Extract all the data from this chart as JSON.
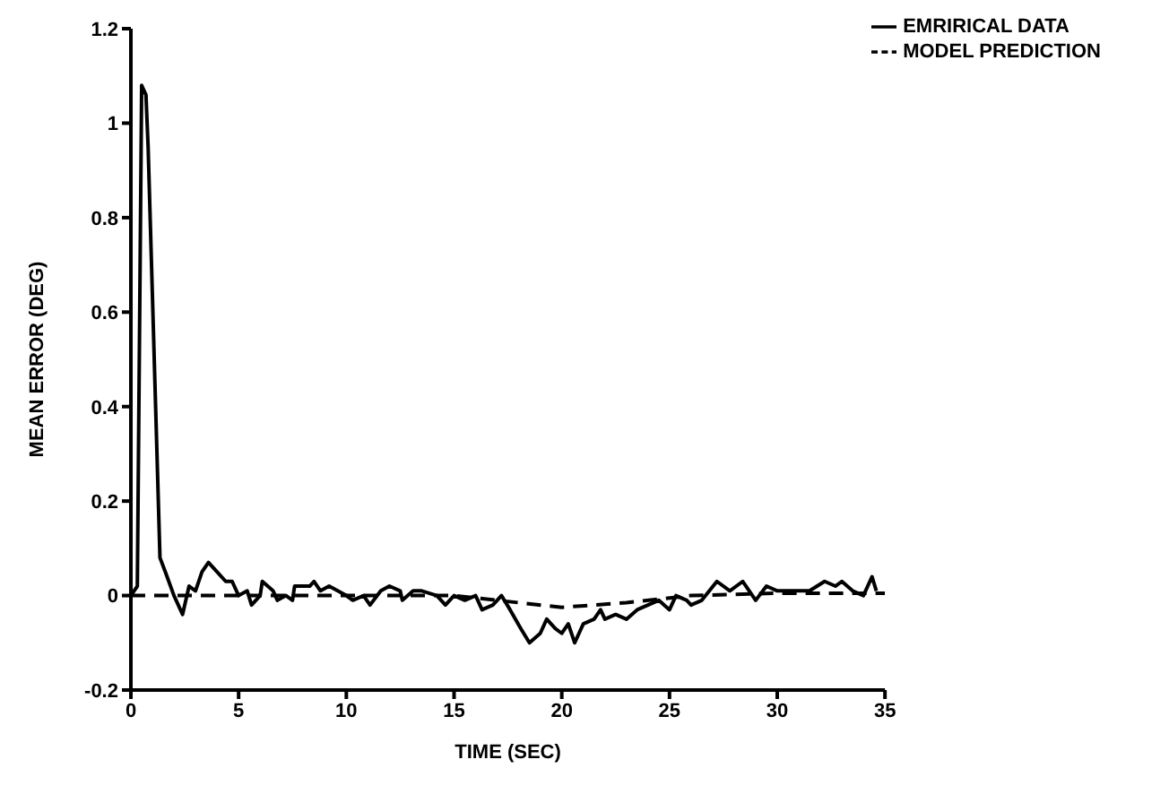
{
  "chart_data": {
    "type": "line",
    "xlabel": "TIME (SEC)",
    "ylabel": "MEAN ERROR (DEG)",
    "xlim": [
      0,
      35
    ],
    "xticks": [
      0,
      5,
      10,
      15,
      20,
      25,
      30,
      35
    ],
    "ylim": [
      -0.2,
      1.2
    ],
    "yticks": [
      -0.2,
      0,
      0.2,
      0.4,
      0.6,
      0.8,
      1,
      1.2
    ],
    "grid": false,
    "legend": "top right",
    "marker": "none",
    "series": [
      {
        "name": "EMRIRICAL DATA",
        "color": "#000000",
        "line_style": "solid",
        "x": [
          0,
          0.3,
          0.5,
          0.7,
          0.8,
          1.35,
          1.6,
          2,
          2.4,
          2.7,
          3,
          3.3,
          3.6,
          4,
          4.4,
          4.7,
          5,
          5.4,
          5.6,
          6,
          6.1,
          6.6,
          6.8,
          7.2,
          7.5,
          7.6,
          8.3,
          8.5,
          8.8,
          9.2,
          9.6,
          10,
          10.3,
          10.8,
          11.1,
          11.6,
          12,
          12.5,
          12.6,
          13.1,
          13.5,
          14.2,
          14.6,
          15,
          15.5,
          16,
          16.3,
          16.8,
          17.2,
          17.6,
          18.1,
          18.5,
          19,
          19.3,
          19.7,
          20,
          20.3,
          20.6,
          21,
          21.5,
          21.8,
          22,
          22.5,
          23,
          23.5,
          24,
          24.5,
          25,
          25.3,
          25.8,
          26,
          26.5,
          27.2,
          27.8,
          28.4,
          29,
          29.5,
          30,
          30.6,
          31.5,
          32.2,
          32.7,
          33,
          33.5,
          34,
          34.4,
          34.6
        ],
        "values": [
          0,
          0.02,
          1.08,
          1.06,
          0.95,
          0.08,
          0.05,
          0,
          -0.04,
          0.02,
          0.01,
          0.05,
          0.07,
          0.05,
          0.03,
          0.03,
          0,
          0.01,
          -0.02,
          0,
          0.03,
          0.01,
          -0.01,
          0,
          -0.01,
          0.02,
          0.02,
          0.03,
          0.01,
          0.02,
          0.01,
          0,
          -0.01,
          0,
          -0.02,
          0.01,
          0.02,
          0.01,
          -0.01,
          0.01,
          0.01,
          0,
          -0.02,
          0,
          -0.01,
          0,
          -0.03,
          -0.02,
          0,
          -0.03,
          -0.07,
          -0.1,
          -0.08,
          -0.05,
          -0.07,
          -0.08,
          -0.06,
          -0.1,
          -0.06,
          -0.05,
          -0.03,
          -0.05,
          -0.04,
          -0.05,
          -0.03,
          -0.02,
          -0.01,
          -0.03,
          0,
          -0.01,
          -0.02,
          -0.01,
          0.03,
          0.01,
          0.03,
          -0.01,
          0.02,
          0.01,
          0.01,
          0.01,
          0.03,
          0.02,
          0.03,
          0.01,
          0,
          0.04,
          0.01
        ]
      },
      {
        "name": "MODEL PREDICTION",
        "color": "#000000",
        "line_style": "dashed",
        "x": [
          0,
          15,
          17,
          20,
          23,
          26,
          30,
          35
        ],
        "values": [
          0,
          0,
          -0.01,
          -0.025,
          -0.015,
          0,
          0.005,
          0.005
        ]
      }
    ]
  }
}
